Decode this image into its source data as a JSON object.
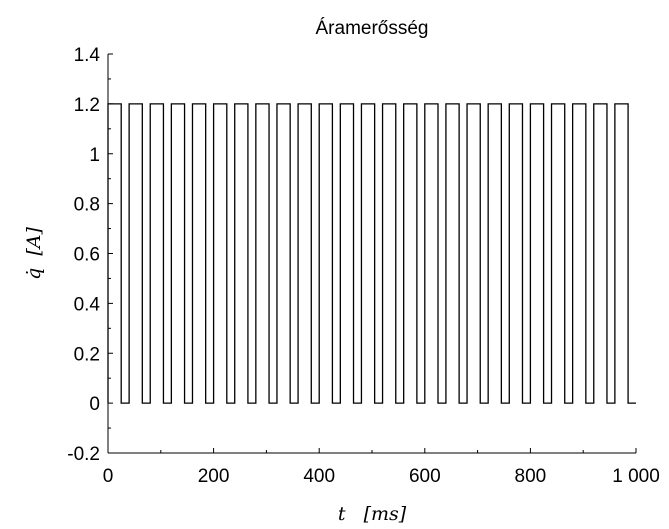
{
  "chart_data": {
    "type": "line",
    "title": "Áramerősség",
    "xlabel": "t   [ms]",
    "ylabel": "q̇  [A]",
    "xlim": [
      0,
      1000
    ],
    "ylim": [
      -0.2,
      1.4
    ],
    "x_ticks": [
      0,
      200,
      400,
      600,
      800,
      1000
    ],
    "x_tick_labels": [
      "0",
      "200",
      "400",
      "600",
      "800",
      "1 000"
    ],
    "y_ticks": [
      -0.2,
      0,
      0.2,
      0.4,
      0.6,
      0.8,
      1,
      1.2,
      1.4
    ],
    "y_tick_labels": [
      "-0.2",
      "0",
      "0.2",
      "0.4",
      "0.6",
      "0.8",
      "1",
      "1.2",
      "1.4"
    ],
    "grid": false,
    "series": [
      {
        "line_color": "#000000",
        "signal": "square_wave",
        "high_value": 1.2,
        "low_value": 0,
        "period_ms": 40,
        "pulse_width_ms": 25,
        "start_ms": 0,
        "end_ms": 1000
      }
    ]
  }
}
